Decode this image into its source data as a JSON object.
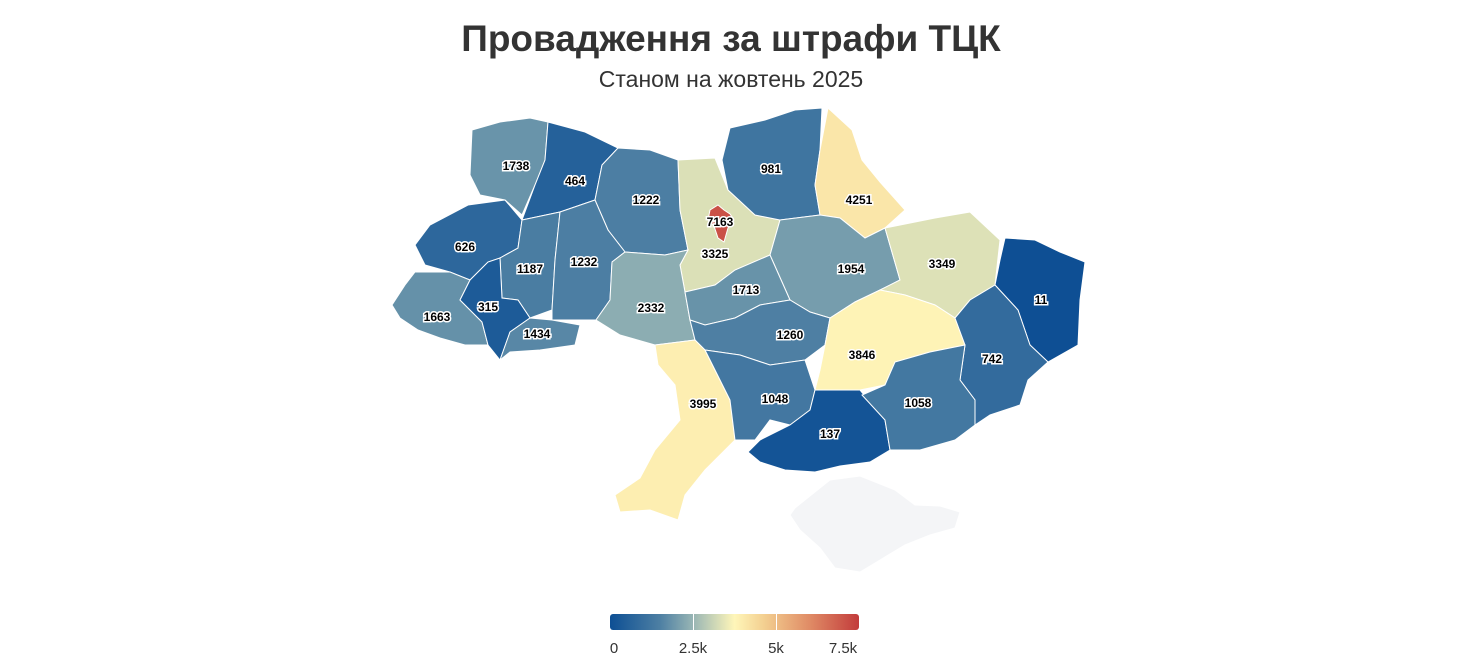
{
  "title": "Провадження за штрафи ТЦК",
  "subtitle": "Станом на жовтень 2025",
  "legend": {
    "min": 0,
    "max": 7500,
    "ticks": [
      {
        "value": 0,
        "label": "0"
      },
      {
        "value": 2500,
        "label": "2.5k"
      },
      {
        "value": 5000,
        "label": "5k"
      },
      {
        "value": 7500,
        "label": "7.5k"
      }
    ]
  },
  "colors": {
    "scale": [
      "#0d4f94",
      "#4d7fa3",
      "#96b4b4",
      "#fff6b9",
      "#f3cf90",
      "#e08c66",
      "#c23b3b"
    ],
    "no_data": "#f4f5f7"
  },
  "regions": [
    {
      "id": "volyn",
      "value": 1738,
      "label": "1738"
    },
    {
      "id": "rivne",
      "value": 464,
      "label": "464"
    },
    {
      "id": "zhytomyr",
      "value": 1222,
      "label": "1222"
    },
    {
      "id": "kyiv-city",
      "value": 7163,
      "label": "7163"
    },
    {
      "id": "kyiv-oblast",
      "value": 3325,
      "label": "3325"
    },
    {
      "id": "chernihiv",
      "value": 981,
      "label": "981"
    },
    {
      "id": "sumy",
      "value": 4251,
      "label": "4251"
    },
    {
      "id": "lviv",
      "value": 626,
      "label": "626"
    },
    {
      "id": "ternopil",
      "value": 1187,
      "label": "1187"
    },
    {
      "id": "khmelnytskyi",
      "value": 1232,
      "label": "1232"
    },
    {
      "id": "poltava",
      "value": 1954,
      "label": "1954"
    },
    {
      "id": "kharkiv",
      "value": 3349,
      "label": "3349"
    },
    {
      "id": "luhansk",
      "value": 11,
      "label": "11"
    },
    {
      "id": "zakarpattia",
      "value": 1663,
      "label": "1663"
    },
    {
      "id": "ivano-frankivsk",
      "value": 315,
      "label": "315"
    },
    {
      "id": "chernivtsi",
      "value": 1434,
      "label": "1434"
    },
    {
      "id": "vinnytsia",
      "value": 2332,
      "label": "2332"
    },
    {
      "id": "cherkasy",
      "value": 1713,
      "label": "1713"
    },
    {
      "id": "kirovohrad",
      "value": 1260,
      "label": "1260"
    },
    {
      "id": "dnipropetrovsk",
      "value": 3846,
      "label": "3846"
    },
    {
      "id": "donetsk",
      "value": 742,
      "label": "742"
    },
    {
      "id": "odesa",
      "value": 3995,
      "label": "3995"
    },
    {
      "id": "mykolaiv",
      "value": 1048,
      "label": "1048"
    },
    {
      "id": "zaporizhzhia",
      "value": 1058,
      "label": "1058"
    },
    {
      "id": "kherson",
      "value": 137,
      "label": "137"
    },
    {
      "id": "crimea",
      "value": null,
      "label": ""
    }
  ]
}
